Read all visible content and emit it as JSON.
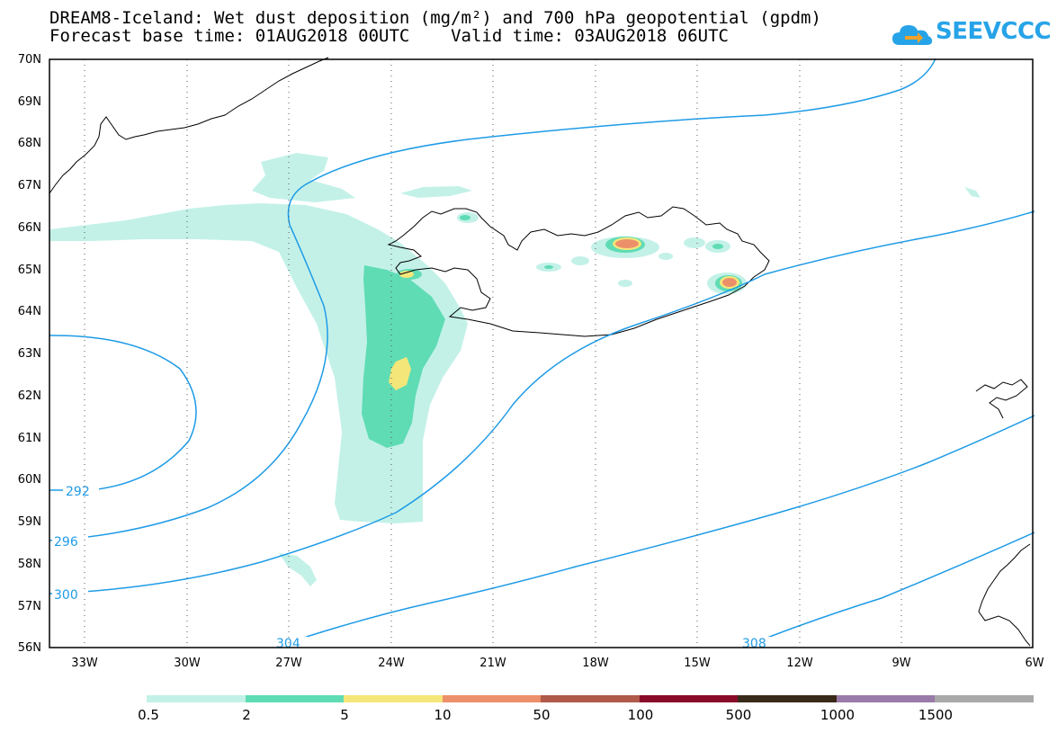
{
  "header": {
    "line1": "DREAM8-Iceland: Wet dust deposition (mg/m²) and 700 hPa geopotential (gpdm)",
    "line2": "Forecast base time: 01AUG2018 00UTC    Valid time: 03AUG2018 06UTC"
  },
  "logo": {
    "text": "SEEVCCC",
    "icon": "cloud-arrow-icon",
    "color": "#27a3e8"
  },
  "map": {
    "lat_labels": [
      "70N",
      "69N",
      "68N",
      "67N",
      "66N",
      "65N",
      "64N",
      "63N",
      "62N",
      "61N",
      "60N",
      "59N",
      "58N",
      "57N",
      "56N"
    ],
    "lon_labels": [
      "33W",
      "30W",
      "27W",
      "24W",
      "21W",
      "18W",
      "15W",
      "12W",
      "9W",
      "6W"
    ],
    "contours": [
      {
        "label": "292"
      },
      {
        "label": "296"
      },
      {
        "label": "300"
      },
      {
        "label": "304"
      },
      {
        "label": "308"
      }
    ],
    "contour_color": "#1e9be6"
  },
  "colorbar": {
    "colors": [
      "#c3f1e8",
      "#5fdcb4",
      "#f5e67a",
      "#ec906a",
      "#b05a4a",
      "#8a0a2a",
      "#3a2a1a",
      "#9a7aa8",
      "#a9a9a9"
    ],
    "labels": [
      "0.5",
      "2",
      "5",
      "10",
      "50",
      "100",
      "500",
      "1000",
      "1500"
    ]
  }
}
